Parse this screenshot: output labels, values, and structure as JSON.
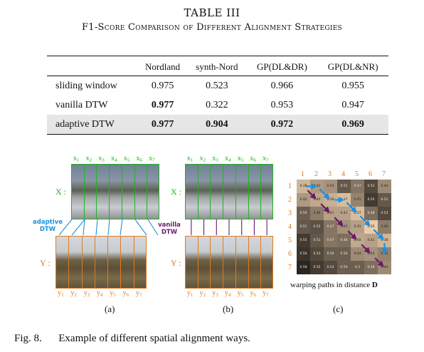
{
  "table": {
    "number": "TABLE III",
    "title": "F1-Score Comparison of Different Alignment Strategies",
    "columns": [
      "",
      "Nordland",
      "synth-Nord",
      "GP(DL&DR)",
      "GP(DL&NR)"
    ],
    "rows": [
      {
        "method": "sliding window",
        "values": [
          "0.975",
          "0.523",
          "0.966",
          "0.955"
        ],
        "bold": [
          false,
          false,
          false,
          false
        ]
      },
      {
        "method": "vanilla DTW",
        "values": [
          "0.977",
          "0.322",
          "0.953",
          "0.947"
        ],
        "bold": [
          true,
          false,
          false,
          false
        ]
      },
      {
        "method": "adaptive DTW",
        "values": [
          "0.977",
          "0.904",
          "0.972",
          "0.969"
        ],
        "bold": [
          true,
          true,
          true,
          true
        ]
      }
    ]
  },
  "figure": {
    "x_letter": "x",
    "y_letter": "y",
    "indices": [
      "1",
      "2",
      "3",
      "4",
      "5",
      "6",
      "7"
    ],
    "x_row_label": "X :",
    "y_row_label": "Y :",
    "adaptive_label_1": "adaptive",
    "adaptive_label_2": "DTW",
    "vanilla_label_1": "vanilla",
    "vanilla_label_2": "DTW",
    "panel_a": "(a)",
    "panel_b": "(b)",
    "panel_c": "(c)",
    "matrix_caption_prefix": "warping paths in distance ",
    "matrix_caption_symbol": "D",
    "matrix_cols": [
      "1",
      "2",
      "3",
      "4",
      "5",
      "6",
      "7"
    ],
    "matrix_rows": [
      "1",
      "2",
      "3",
      "4",
      "5",
      "6",
      "7"
    ],
    "matrix_values": [
      [
        "0.38",
        "0.42",
        "0.43",
        "0.51",
        "0.47",
        "0.53",
        "0.44"
      ],
      [
        "0.42",
        "0.40",
        "0.39",
        "0.37",
        "0.45",
        "0.55",
        "0.51"
      ],
      [
        "0.50",
        "0.46",
        "0.41",
        "0.41",
        "0.37",
        "0.48",
        "0.53"
      ],
      [
        "0.51",
        "0.52",
        "0.47",
        "0.43",
        "0.41",
        "0.35",
        "0.46"
      ],
      [
        "0.55",
        "0.51",
        "0.47",
        "0.48",
        "0.40",
        "0.41",
        "0.38"
      ],
      [
        "0.56",
        "0.53",
        "0.50",
        "0.50",
        "0.44",
        "0.43",
        "0.45"
      ],
      [
        "0.58",
        "0.55",
        "0.53",
        "0.50",
        "0.5",
        "0.48",
        "0.44"
      ]
    ],
    "colors": {
      "x_frames": "#1fb41f",
      "y_frames": "#e07a1f",
      "adaptive": "#1e8fe0",
      "vanilla": "#6a1b6a",
      "matrix_index": "#e07a1f"
    }
  },
  "caption": {
    "label": "Fig. 8.",
    "text": "Example of different spatial alignment ways."
  }
}
